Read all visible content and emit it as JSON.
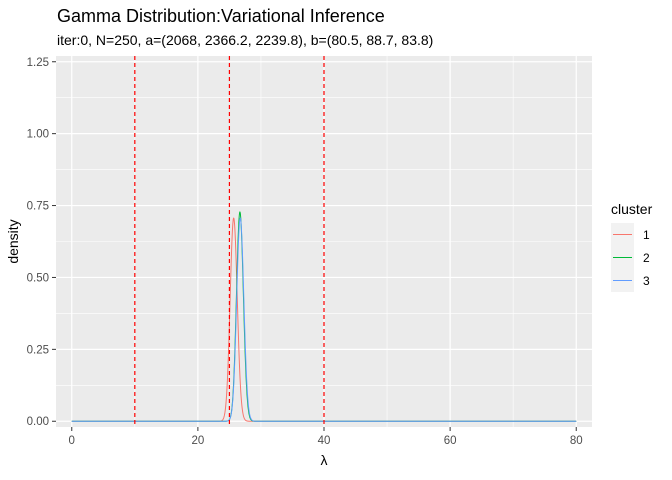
{
  "chart_data": {
    "type": "line",
    "title": "Gamma Distribution:Variational Inference",
    "subtitle": "iter:0, N=250, a=(2068, 2366.2, 2239.8), b=(80.5, 88.7, 83.8)",
    "xlabel": "λ",
    "ylabel": "density",
    "xlim": [
      -2.5,
      82.5
    ],
    "ylim": [
      -0.02,
      1.27
    ],
    "x_ticks": [
      0,
      20,
      40,
      60,
      80
    ],
    "x_tick_labels": [
      "0",
      "20",
      "40",
      "60",
      "80"
    ],
    "y_ticks": [
      0,
      0.25,
      0.5,
      0.75,
      1.0,
      1.25
    ],
    "y_tick_labels": [
      "0.00",
      "0.25",
      "0.50",
      "0.75",
      "1.00",
      "1.25"
    ],
    "panel_background": "#ebebeb",
    "grid": true,
    "legend": {
      "title": "cluster",
      "position": "right",
      "entries": [
        "1",
        "2",
        "3"
      ]
    },
    "series": [
      {
        "name": "1",
        "color": "#f8766d",
        "shape": 2068,
        "rate": 80.5,
        "x_range": [
          0,
          80
        ]
      },
      {
        "name": "2",
        "color": "#00ba38",
        "shape": 2366.2,
        "rate": 88.7,
        "x_range": [
          0,
          80
        ]
      },
      {
        "name": "3",
        "color": "#619cff",
        "shape": 2239.8,
        "rate": 83.8,
        "x_range": [
          0,
          80
        ]
      }
    ],
    "vlines": {
      "x": [
        10,
        25,
        40
      ],
      "color": "#ff0000",
      "style": "dashed"
    }
  }
}
